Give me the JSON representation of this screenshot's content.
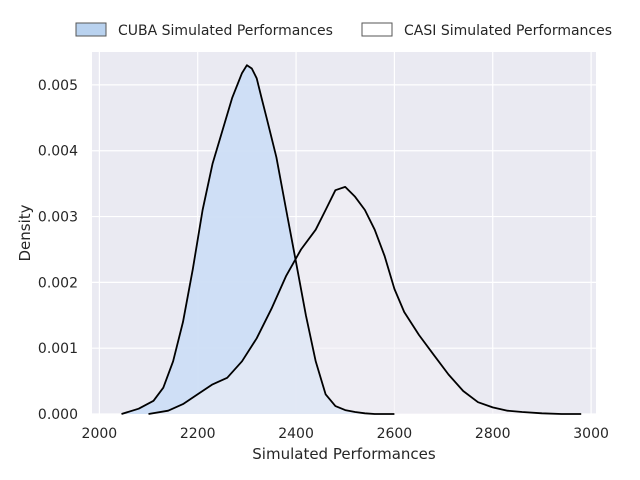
{
  "chart_data": {
    "type": "area",
    "xlabel": "Simulated Performances",
    "ylabel": "Density",
    "xlim": [
      1985,
      3010
    ],
    "ylim": [
      0,
      0.0055
    ],
    "xticks": [
      2000,
      2200,
      2400,
      2600,
      2800,
      3000
    ],
    "yticks": [
      0.0,
      0.001,
      0.002,
      0.003,
      0.004,
      0.005
    ],
    "ytick_labels": [
      "0.000",
      "0.001",
      "0.002",
      "0.003",
      "0.004",
      "0.005"
    ],
    "grid": true,
    "legend_position": "top",
    "series": [
      {
        "name": "CUBA Simulated Performances",
        "fill_color": "#cddef6",
        "legend_fill": "#b9d2ef",
        "line_color": "#000000",
        "x": [
          2045,
          2080,
          2110,
          2130,
          2150,
          2170,
          2190,
          2210,
          2230,
          2250,
          2270,
          2290,
          2300,
          2310,
          2320,
          2330,
          2340,
          2360,
          2380,
          2400,
          2420,
          2440,
          2460,
          2480,
          2500,
          2520,
          2540,
          2560,
          2580,
          2600
        ],
        "y": [
          0.0,
          8e-05,
          0.0002,
          0.0004,
          0.0008,
          0.0014,
          0.0022,
          0.0031,
          0.0038,
          0.0043,
          0.0048,
          0.00518,
          0.0053,
          0.00525,
          0.0051,
          0.0048,
          0.0045,
          0.0039,
          0.0031,
          0.0023,
          0.0015,
          0.0008,
          0.0003,
          0.00012,
          6e-05,
          3e-05,
          1e-05,
          0.0,
          0.0,
          0.0
        ]
      },
      {
        "name": "CASI Simulated Performances",
        "fill_color": "#f1eff4",
        "legend_fill": "#ffffff",
        "line_color": "#000000",
        "x": [
          2100,
          2140,
          2170,
          2200,
          2230,
          2260,
          2290,
          2320,
          2350,
          2380,
          2410,
          2440,
          2460,
          2480,
          2500,
          2520,
          2540,
          2560,
          2580,
          2600,
          2620,
          2650,
          2680,
          2710,
          2740,
          2770,
          2800,
          2830,
          2860,
          2900,
          2940,
          2980
        ],
        "y": [
          0.0,
          5e-05,
          0.00015,
          0.0003,
          0.00045,
          0.00055,
          0.0008,
          0.00115,
          0.0016,
          0.0021,
          0.0025,
          0.0028,
          0.0031,
          0.0034,
          0.00345,
          0.0033,
          0.0031,
          0.0028,
          0.0024,
          0.0019,
          0.00155,
          0.0012,
          0.0009,
          0.0006,
          0.00035,
          0.00018,
          0.0001,
          5e-05,
          3e-05,
          1e-05,
          0.0,
          0.0
        ]
      }
    ]
  },
  "colors": {
    "plot_background": "#eaeaf2",
    "grid": "#ffffff",
    "text": "#262626"
  }
}
